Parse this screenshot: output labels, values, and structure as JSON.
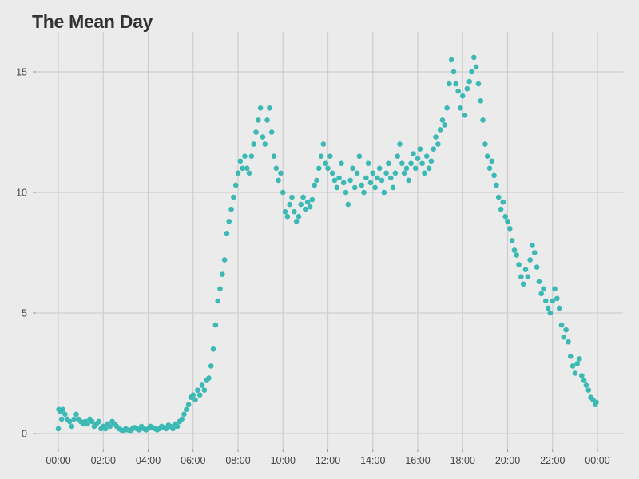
{
  "chart_data": {
    "type": "scatter",
    "title": "The Mean Day",
    "xlabel": "",
    "ylabel": "",
    "x_unit": "hours since midnight",
    "xlim": [
      0,
      24
    ],
    "ylim": [
      0,
      16
    ],
    "x_tick_values": [
      0,
      2,
      4,
      6,
      8,
      10,
      12,
      14,
      16,
      18,
      20,
      22,
      24
    ],
    "x_tick_labels": [
      "00:00",
      "02:00",
      "04:00",
      "06:00",
      "08:00",
      "10:00",
      "12:00",
      "14:00",
      "16:00",
      "18:00",
      "20:00",
      "22:00",
      "00:00"
    ],
    "y_tick_values": [
      0,
      5,
      10,
      15
    ],
    "y_tick_labels": [
      "0",
      "5",
      "10",
      "15"
    ],
    "grid": true,
    "point_color": "#3cb9b4",
    "background_color": "#ebebeb",
    "grid_color": "#cfcfcf",
    "series": [
      {
        "points": [
          [
            0.0,
            0.2
          ],
          [
            0.02,
            1.0
          ],
          [
            0.1,
            0.9
          ],
          [
            0.15,
            0.6
          ],
          [
            0.2,
            1.0
          ],
          [
            0.3,
            0.8
          ],
          [
            0.4,
            0.6
          ],
          [
            0.5,
            0.5
          ],
          [
            0.6,
            0.3
          ],
          [
            0.7,
            0.6
          ],
          [
            0.8,
            0.8
          ],
          [
            0.9,
            0.6
          ],
          [
            1.0,
            0.5
          ],
          [
            1.1,
            0.4
          ],
          [
            1.2,
            0.5
          ],
          [
            1.3,
            0.4
          ],
          [
            1.4,
            0.6
          ],
          [
            1.5,
            0.5
          ],
          [
            1.6,
            0.3
          ],
          [
            1.7,
            0.4
          ],
          [
            1.8,
            0.5
          ],
          [
            1.9,
            0.2
          ],
          [
            2.0,
            0.3
          ],
          [
            2.1,
            0.2
          ],
          [
            2.2,
            0.4
          ],
          [
            2.3,
            0.3
          ],
          [
            2.4,
            0.5
          ],
          [
            2.5,
            0.4
          ],
          [
            2.6,
            0.3
          ],
          [
            2.7,
            0.2
          ],
          [
            2.8,
            0.15
          ],
          [
            2.9,
            0.1
          ],
          [
            3.0,
            0.2
          ],
          [
            3.1,
            0.15
          ],
          [
            3.2,
            0.1
          ],
          [
            3.3,
            0.2
          ],
          [
            3.4,
            0.25
          ],
          [
            3.5,
            0.2
          ],
          [
            3.6,
            0.15
          ],
          [
            3.7,
            0.3
          ],
          [
            3.8,
            0.2
          ],
          [
            3.9,
            0.15
          ],
          [
            4.0,
            0.2
          ],
          [
            4.1,
            0.3
          ],
          [
            4.2,
            0.25
          ],
          [
            4.3,
            0.2
          ],
          [
            4.4,
            0.15
          ],
          [
            4.5,
            0.2
          ],
          [
            4.6,
            0.3
          ],
          [
            4.7,
            0.25
          ],
          [
            4.8,
            0.2
          ],
          [
            4.9,
            0.35
          ],
          [
            5.0,
            0.3
          ],
          [
            5.1,
            0.2
          ],
          [
            5.2,
            0.4
          ],
          [
            5.3,
            0.3
          ],
          [
            5.4,
            0.5
          ],
          [
            5.5,
            0.6
          ],
          [
            5.6,
            0.8
          ],
          [
            5.7,
            1.0
          ],
          [
            5.8,
            1.2
          ],
          [
            5.9,
            1.5
          ],
          [
            6.0,
            1.6
          ],
          [
            6.1,
            1.4
          ],
          [
            6.2,
            1.8
          ],
          [
            6.3,
            1.6
          ],
          [
            6.4,
            2.0
          ],
          [
            6.5,
            1.8
          ],
          [
            6.6,
            2.2
          ],
          [
            6.7,
            2.3
          ],
          [
            6.8,
            2.8
          ],
          [
            6.9,
            3.5
          ],
          [
            7.0,
            4.5
          ],
          [
            7.1,
            5.5
          ],
          [
            7.2,
            6.0
          ],
          [
            7.3,
            6.6
          ],
          [
            7.4,
            7.2
          ],
          [
            7.5,
            8.3
          ],
          [
            7.6,
            8.8
          ],
          [
            7.7,
            9.3
          ],
          [
            7.8,
            9.8
          ],
          [
            7.9,
            10.3
          ],
          [
            8.0,
            10.8
          ],
          [
            8.1,
            11.3
          ],
          [
            8.2,
            11.0
          ],
          [
            8.3,
            11.5
          ],
          [
            8.4,
            11.0
          ],
          [
            8.5,
            10.8
          ],
          [
            8.6,
            11.5
          ],
          [
            8.7,
            12.0
          ],
          [
            8.8,
            12.5
          ],
          [
            8.9,
            13.0
          ],
          [
            9.0,
            13.5
          ],
          [
            9.1,
            12.3
          ],
          [
            9.2,
            12.0
          ],
          [
            9.3,
            13.0
          ],
          [
            9.4,
            13.5
          ],
          [
            9.5,
            12.5
          ],
          [
            9.6,
            11.5
          ],
          [
            9.7,
            11.0
          ],
          [
            9.8,
            10.5
          ],
          [
            9.9,
            10.8
          ],
          [
            10.0,
            10.0
          ],
          [
            10.1,
            9.2
          ],
          [
            10.2,
            9.0
          ],
          [
            10.3,
            9.5
          ],
          [
            10.4,
            9.8
          ],
          [
            10.5,
            9.2
          ],
          [
            10.6,
            8.8
          ],
          [
            10.7,
            9.0
          ],
          [
            10.8,
            9.5
          ],
          [
            10.9,
            9.8
          ],
          [
            11.0,
            9.3
          ],
          [
            11.1,
            9.6
          ],
          [
            11.2,
            9.4
          ],
          [
            11.3,
            9.7
          ],
          [
            11.4,
            10.3
          ],
          [
            11.5,
            10.5
          ],
          [
            11.6,
            11.0
          ],
          [
            11.7,
            11.5
          ],
          [
            11.8,
            12.0
          ],
          [
            11.9,
            11.2
          ],
          [
            12.0,
            11.0
          ],
          [
            12.1,
            11.5
          ],
          [
            12.2,
            10.8
          ],
          [
            12.3,
            10.5
          ],
          [
            12.4,
            10.2
          ],
          [
            12.5,
            10.6
          ],
          [
            12.6,
            11.2
          ],
          [
            12.7,
            10.4
          ],
          [
            12.8,
            10.0
          ],
          [
            12.9,
            9.5
          ],
          [
            13.0,
            10.5
          ],
          [
            13.1,
            11.0
          ],
          [
            13.2,
            10.2
          ],
          [
            13.3,
            10.8
          ],
          [
            13.4,
            11.5
          ],
          [
            13.5,
            10.3
          ],
          [
            13.6,
            10.0
          ],
          [
            13.7,
            10.6
          ],
          [
            13.8,
            11.2
          ],
          [
            13.9,
            10.4
          ],
          [
            14.0,
            10.8
          ],
          [
            14.1,
            10.2
          ],
          [
            14.2,
            10.6
          ],
          [
            14.3,
            11.0
          ],
          [
            14.4,
            10.5
          ],
          [
            14.5,
            10.0
          ],
          [
            14.6,
            10.8
          ],
          [
            14.7,
            11.2
          ],
          [
            14.8,
            10.6
          ],
          [
            14.9,
            10.2
          ],
          [
            15.0,
            10.8
          ],
          [
            15.1,
            11.5
          ],
          [
            15.2,
            12.0
          ],
          [
            15.3,
            11.2
          ],
          [
            15.4,
            10.8
          ],
          [
            15.5,
            11.0
          ],
          [
            15.6,
            10.5
          ],
          [
            15.7,
            11.2
          ],
          [
            15.8,
            11.6
          ],
          [
            15.9,
            11.0
          ],
          [
            16.0,
            11.4
          ],
          [
            16.1,
            11.8
          ],
          [
            16.2,
            11.2
          ],
          [
            16.3,
            10.8
          ],
          [
            16.4,
            11.5
          ],
          [
            16.5,
            11.0
          ],
          [
            16.6,
            11.3
          ],
          [
            16.7,
            11.8
          ],
          [
            16.8,
            12.3
          ],
          [
            16.9,
            12.0
          ],
          [
            17.0,
            12.6
          ],
          [
            17.1,
            13.0
          ],
          [
            17.2,
            12.8
          ],
          [
            17.3,
            13.5
          ],
          [
            17.4,
            14.5
          ],
          [
            17.5,
            15.5
          ],
          [
            17.6,
            15.0
          ],
          [
            17.7,
            14.5
          ],
          [
            17.8,
            14.2
          ],
          [
            17.9,
            13.5
          ],
          [
            18.0,
            14.0
          ],
          [
            18.1,
            13.2
          ],
          [
            18.2,
            14.3
          ],
          [
            18.3,
            14.6
          ],
          [
            18.4,
            15.0
          ],
          [
            18.5,
            15.6
          ],
          [
            18.6,
            15.2
          ],
          [
            18.7,
            14.5
          ],
          [
            18.8,
            13.8
          ],
          [
            18.9,
            13.0
          ],
          [
            19.0,
            12.0
          ],
          [
            19.1,
            11.5
          ],
          [
            19.2,
            11.0
          ],
          [
            19.3,
            11.3
          ],
          [
            19.4,
            10.7
          ],
          [
            19.5,
            10.3
          ],
          [
            19.6,
            9.8
          ],
          [
            19.7,
            9.3
          ],
          [
            19.8,
            9.6
          ],
          [
            19.9,
            9.0
          ],
          [
            20.0,
            8.8
          ],
          [
            20.1,
            8.5
          ],
          [
            20.2,
            8.0
          ],
          [
            20.3,
            7.6
          ],
          [
            20.4,
            7.4
          ],
          [
            20.5,
            7.0
          ],
          [
            20.6,
            6.5
          ],
          [
            20.7,
            6.2
          ],
          [
            20.8,
            6.8
          ],
          [
            20.9,
            6.5
          ],
          [
            21.0,
            7.2
          ],
          [
            21.1,
            7.8
          ],
          [
            21.2,
            7.5
          ],
          [
            21.3,
            6.9
          ],
          [
            21.4,
            6.3
          ],
          [
            21.5,
            5.8
          ],
          [
            21.6,
            6.0
          ],
          [
            21.7,
            5.5
          ],
          [
            21.8,
            5.2
          ],
          [
            21.9,
            5.0
          ],
          [
            22.0,
            5.5
          ],
          [
            22.1,
            6.0
          ],
          [
            22.2,
            5.6
          ],
          [
            22.3,
            5.2
          ],
          [
            22.4,
            4.5
          ],
          [
            22.5,
            4.0
          ],
          [
            22.6,
            4.3
          ],
          [
            22.7,
            3.8
          ],
          [
            22.8,
            3.2
          ],
          [
            22.9,
            2.8
          ],
          [
            23.0,
            2.5
          ],
          [
            23.1,
            2.9
          ],
          [
            23.2,
            3.1
          ],
          [
            23.3,
            2.4
          ],
          [
            23.4,
            2.2
          ],
          [
            23.5,
            2.0
          ],
          [
            23.6,
            1.8
          ],
          [
            23.7,
            1.5
          ],
          [
            23.8,
            1.4
          ],
          [
            23.9,
            1.2
          ],
          [
            23.95,
            1.3
          ]
        ]
      }
    ]
  }
}
